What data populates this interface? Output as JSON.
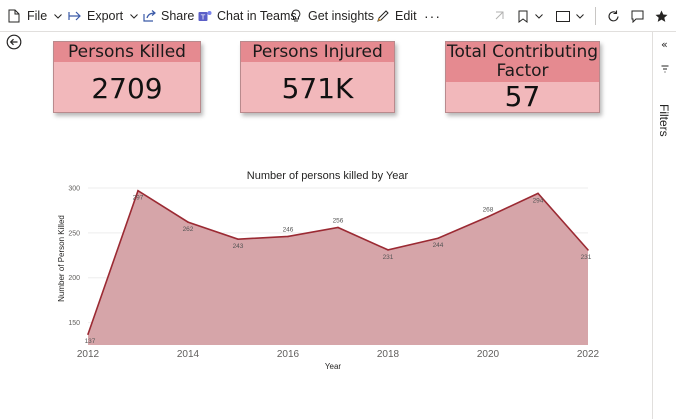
{
  "toolbar": {
    "file_label": "File",
    "export_label": "Export",
    "share_label": "Share",
    "chat_label": "Chat in Teams",
    "insights_label": "Get insights",
    "edit_label": "Edit",
    "more_label": "···"
  },
  "side_panel": {
    "filters_label": "Filters"
  },
  "cards": [
    {
      "title": "Persons Killed",
      "value": "2709"
    },
    {
      "title": "Persons Injured",
      "value": "571K"
    },
    {
      "title": "Total Contributing Factor",
      "title_line1": "Total Contributing",
      "title_line2": "Factor",
      "value": "57"
    }
  ],
  "colors": {
    "card_header": "#e58a90",
    "card_body": "#f2b8bb",
    "line": "#9b2a33",
    "area": "#d6a5a9"
  },
  "chart_data": {
    "type": "area",
    "title": "Number of persons killed by Year",
    "xlabel": "Year",
    "ylabel": "Number of Person Killed",
    "x": [
      2012,
      2013,
      2014,
      2015,
      2016,
      2017,
      2018,
      2019,
      2020,
      2021,
      2022
    ],
    "values": [
      137,
      297,
      262,
      243,
      246,
      256,
      231,
      244,
      268,
      294,
      231
    ],
    "data_labels": [
      "137",
      "297",
      "262",
      "243",
      "246",
      "256",
      "231",
      "244",
      "268",
      "294",
      "231"
    ],
    "x_ticks": [
      "2012",
      "2014",
      "2016",
      "2018",
      "2020",
      "2022"
    ],
    "y_ticks": [
      "300",
      "250",
      "200",
      "150"
    ],
    "ylim": [
      125,
      300
    ],
    "grid": true,
    "legend": "none"
  }
}
